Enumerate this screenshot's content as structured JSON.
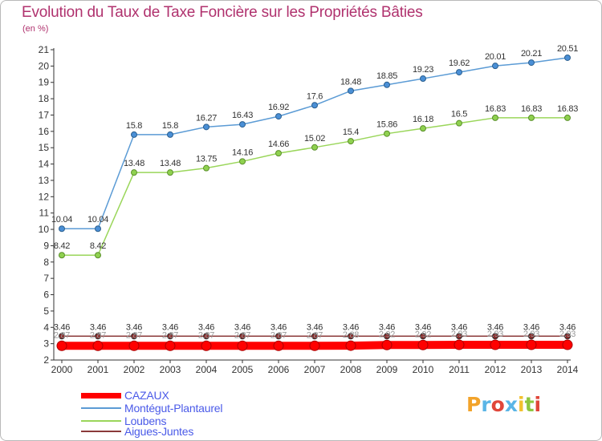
{
  "chart_data": {
    "type": "line",
    "title": "Evolution du Taux de Taxe Foncière sur les Propriétés Bâties",
    "unit_label": "(en %)",
    "xlabel": "",
    "ylabel": "",
    "ylim": [
      2,
      21
    ],
    "yticks": [
      "2",
      "3",
      "4",
      "5",
      "6",
      "7",
      "8",
      "9",
      "10",
      "11",
      "12",
      "13",
      "14",
      "15",
      "16",
      "17",
      "18",
      "19",
      "20",
      "21"
    ],
    "categories": [
      "2000",
      "2001",
      "2002",
      "2003",
      "2004",
      "2005",
      "2006",
      "2007",
      "2008",
      "2009",
      "2010",
      "2011",
      "2012",
      "2013",
      "2014"
    ],
    "series": [
      {
        "name": "CAZAUX",
        "color": "#ff0000",
        "values": [
          2.87,
          2.87,
          2.87,
          2.87,
          2.87,
          2.87,
          2.87,
          2.87,
          2.88,
          2.92,
          2.92,
          2.93,
          2.93,
          2.93,
          2.93
        ],
        "labels": [
          "2.87",
          "2.87",
          "2.87",
          "2.87",
          "2.87",
          "2.87",
          "2.87",
          "2.87",
          "2.88",
          "2.92",
          "2.92",
          "2.93",
          "2.93",
          "2.93",
          "2.93"
        ]
      },
      {
        "name": "Montégut-Plantaurel",
        "color": "#5b9bd5",
        "values": [
          10.04,
          10.04,
          15.8,
          15.8,
          16.27,
          16.43,
          16.92,
          17.6,
          18.48,
          18.85,
          19.23,
          19.62,
          20.01,
          20.21,
          20.51
        ],
        "labels": [
          "10.04",
          "10.04",
          "15.8",
          "15.8",
          "16.27",
          "16.43",
          "16.92",
          "17.6",
          "18.48",
          "18.85",
          "19.23",
          "19.62",
          "20.01",
          "20.21",
          "20.51"
        ]
      },
      {
        "name": "Loubens",
        "color": "#9ad65a",
        "values": [
          8.42,
          8.42,
          13.48,
          13.48,
          13.75,
          14.16,
          14.66,
          15.02,
          15.4,
          15.86,
          16.18,
          16.5,
          16.83,
          16.83,
          16.83
        ],
        "labels": [
          "8.42",
          "8.42",
          "13.48",
          "13.48",
          "13.75",
          "14.16",
          "14.66",
          "15.02",
          "15.4",
          "15.86",
          "16.18",
          "16.5",
          "16.83",
          "16.83",
          "16.83"
        ]
      },
      {
        "name": "Aigues-Juntes",
        "color": "#8b3a3a",
        "values": [
          3.46,
          3.46,
          3.46,
          3.46,
          3.46,
          3.46,
          3.46,
          3.46,
          3.46,
          3.46,
          3.46,
          3.46,
          3.46,
          3.46,
          3.46
        ],
        "labels": [
          "3.46",
          "3.46",
          "3.46",
          "3.46",
          "3.46",
          "3.46",
          "3.46",
          "3.46",
          "3.46",
          "3.46",
          "3.46",
          "3.46",
          "3.46",
          "3.46",
          "3.46"
        ]
      }
    ],
    "grid": false,
    "legend_position": "bottom-left"
  },
  "logo": {
    "letters": [
      "P",
      "r",
      "o",
      "x",
      "i",
      "t",
      "i"
    ],
    "colors": [
      "#f2a32a",
      "#5bb5e6",
      "#e0463a",
      "#5bb5e6",
      "#f2c12e",
      "#8dc63f",
      "#e0463a"
    ]
  }
}
